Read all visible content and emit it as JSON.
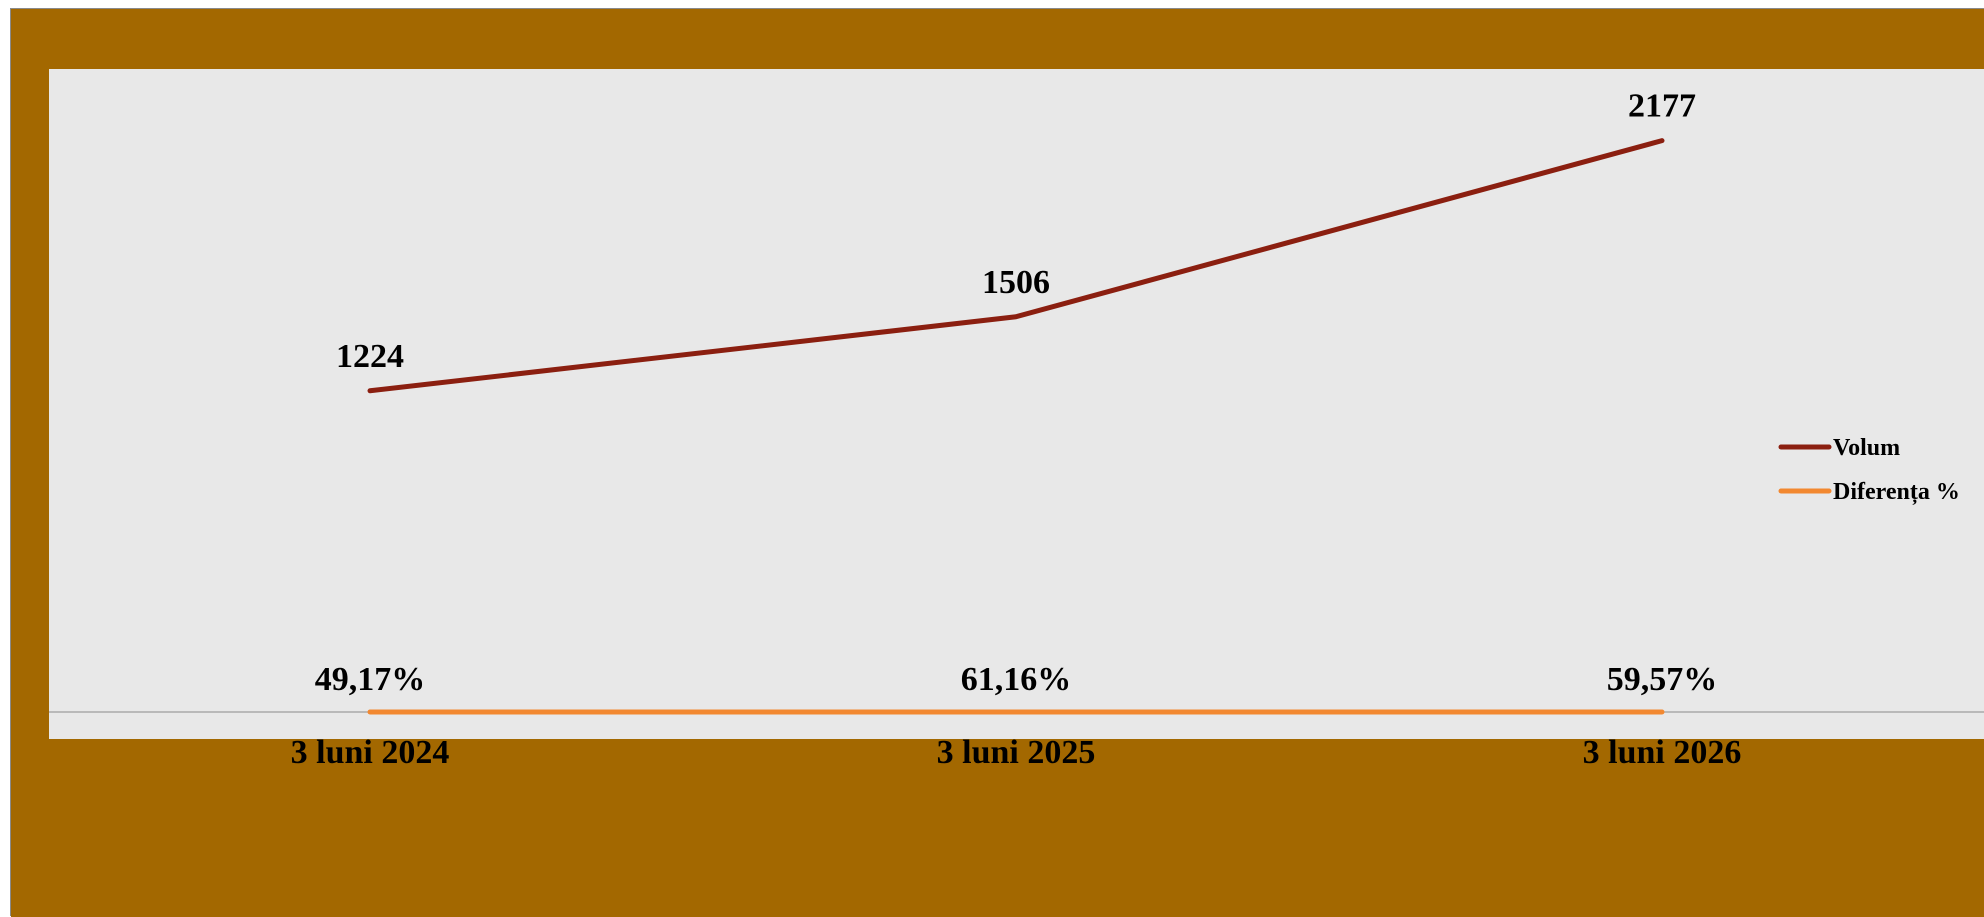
{
  "colors": {
    "outer_background": "#A36800",
    "plot_background": "#E8E8E8",
    "volum_line": "#8B1F10",
    "diferenta_line": "#F28830"
  },
  "chart_data": {
    "type": "line",
    "categories": [
      "3 luni 2024",
      "3 luni 2025",
      "3 luni 2026"
    ],
    "series": [
      {
        "name": "Volum",
        "values": [
          1224,
          1506,
          2177
        ],
        "labels": [
          "1224",
          "1506",
          "2177"
        ],
        "color": "#8B1F10"
      },
      {
        "name": "Diferența %",
        "values": [
          49.17,
          61.16,
          59.57
        ],
        "labels": [
          "49,17%",
          "61,16%",
          "59,57%"
        ],
        "color": "#F28830"
      }
    ],
    "ylim": [
      0,
      2450
    ],
    "grid": false,
    "legend": "right"
  }
}
